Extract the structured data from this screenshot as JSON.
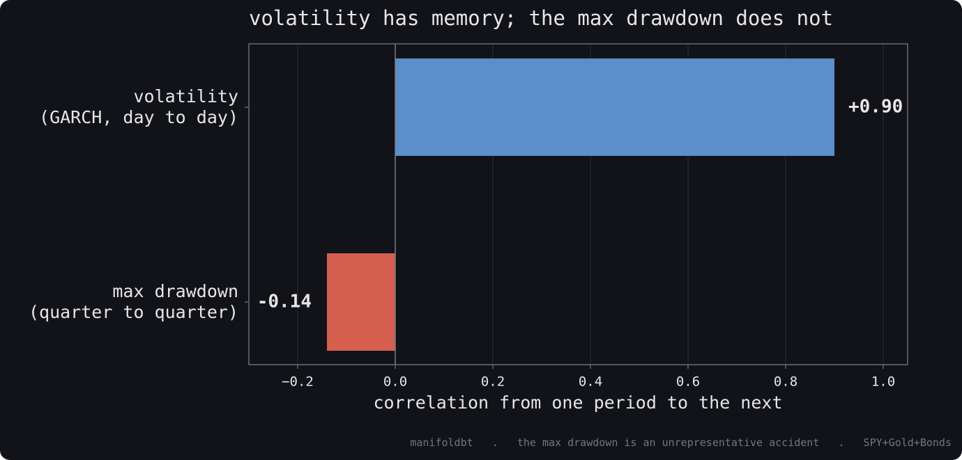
{
  "chart_data": {
    "type": "barh",
    "title": "volatility has memory; the max drawdown does not",
    "categories": [
      "volatility\n(GARCH, day to day)",
      "max drawdown\n(quarter to quarter)"
    ],
    "values": [
      0.9,
      -0.14
    ],
    "value_labels": [
      "+0.90",
      "-0.14"
    ],
    "colors": [
      "#5b8fc9",
      "#d45f4f"
    ],
    "xlabel": "correlation from one period to the next",
    "xlim": [
      -0.3,
      1.05
    ],
    "xticks": [
      {
        "value": -0.2,
        "label": "−0.2"
      },
      {
        "value": 0,
        "label": "0.0"
      },
      0.2,
      0.4,
      0.6,
      0.8,
      {
        "value": 1,
        "label": "1.0"
      }
    ],
    "grid": true,
    "footer": "manifoldbt   .   the max drawdown is an unrepresentative accident   .   SPY+Gold+Bonds"
  }
}
